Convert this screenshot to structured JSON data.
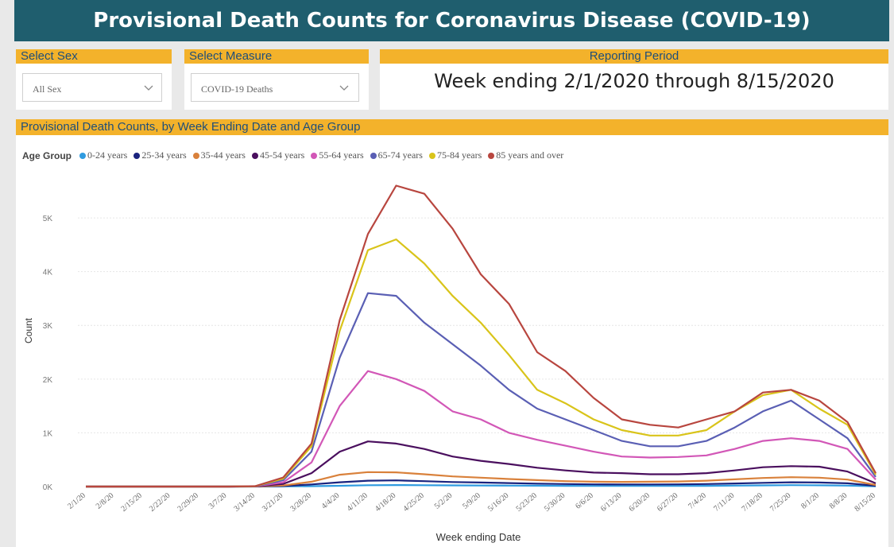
{
  "title": "Provisional Death Counts for Coronavirus Disease (COVID-19)",
  "filters": {
    "sex_label": "Select Sex",
    "sex_value": "All Sex",
    "measure_label": "Select Measure",
    "measure_value": "COVID-19 Deaths",
    "period_label": "Reporting Period",
    "period_value": "Week ending 2/1/2020 through 8/15/2020"
  },
  "colors": {
    "title_bar": "#1f5e6e",
    "header_band": "#f3b22b",
    "header_text": "#1f4e79"
  },
  "chart_data": {
    "type": "line",
    "title": "Provisional Death Counts, by Week Ending Date and Age Group",
    "xlabel": "Week ending Date",
    "ylabel": "Count",
    "legend_title": "Age Group",
    "legend_position": "top-left",
    "grid": true,
    "ylim": [
      0,
      5800
    ],
    "yticks": [
      {
        "value": 0,
        "label": "0K"
      },
      {
        "value": 1000,
        "label": "1K"
      },
      {
        "value": 2000,
        "label": "2K"
      },
      {
        "value": 3000,
        "label": "3K"
      },
      {
        "value": 4000,
        "label": "4K"
      },
      {
        "value": 5000,
        "label": "5K"
      }
    ],
    "x": [
      "2/1/20",
      "2/8/20",
      "2/15/20",
      "2/22/20",
      "2/29/20",
      "3/7/20",
      "3/14/20",
      "3/21/20",
      "3/28/20",
      "4/4/20",
      "4/11/20",
      "4/18/20",
      "4/25/20",
      "5/2/20",
      "5/9/20",
      "5/16/20",
      "5/23/20",
      "5/30/20",
      "6/6/20",
      "6/13/20",
      "6/20/20",
      "6/27/20",
      "7/4/20",
      "7/11/20",
      "7/18/20",
      "7/25/20",
      "8/1/20",
      "8/8/20",
      "8/15/20"
    ],
    "series": [
      {
        "name": "0-24 years",
        "color": "#2f9be0",
        "values": [
          0,
          0,
          0,
          0,
          0,
          0,
          0,
          3,
          8,
          15,
          25,
          28,
          25,
          22,
          20,
          18,
          16,
          14,
          12,
          12,
          12,
          12,
          14,
          18,
          22,
          26,
          24,
          18,
          5
        ]
      },
      {
        "name": "25-34 years",
        "color": "#1a237e",
        "values": [
          0,
          0,
          0,
          0,
          0,
          0,
          1,
          10,
          40,
          80,
          110,
          115,
          100,
          85,
          75,
          65,
          55,
          48,
          42,
          40,
          40,
          42,
          48,
          58,
          70,
          80,
          75,
          60,
          15
        ]
      },
      {
        "name": "35-44 years",
        "color": "#d9813b",
        "values": [
          0,
          0,
          0,
          0,
          0,
          0,
          2,
          20,
          90,
          220,
          270,
          265,
          230,
          190,
          165,
          140,
          120,
          100,
          90,
          88,
          90,
          95,
          110,
          135,
          160,
          175,
          165,
          130,
          30
        ]
      },
      {
        "name": "45-54 years",
        "color": "#4a0f5e",
        "values": [
          0,
          0,
          0,
          0,
          0,
          0,
          3,
          50,
          250,
          650,
          840,
          800,
          700,
          560,
          480,
          420,
          350,
          300,
          260,
          250,
          230,
          230,
          250,
          300,
          360,
          380,
          370,
          280,
          60
        ]
      },
      {
        "name": "55-64 years",
        "color": "#d257b7",
        "values": [
          0,
          0,
          0,
          0,
          0,
          0,
          4,
          80,
          450,
          1500,
          2150,
          2000,
          1780,
          1400,
          1250,
          1000,
          870,
          760,
          650,
          560,
          540,
          550,
          580,
          700,
          850,
          900,
          850,
          700,
          130
        ]
      },
      {
        "name": "65-74 years",
        "color": "#5a5fb4",
        "values": [
          0,
          0,
          0,
          0,
          0,
          0,
          5,
          120,
          650,
          2400,
          3600,
          3550,
          3050,
          2650,
          2250,
          1800,
          1450,
          1250,
          1050,
          850,
          750,
          750,
          850,
          1100,
          1400,
          1600,
          1250,
          900,
          180
        ]
      },
      {
        "name": "75-84 years",
        "color": "#d9c41a",
        "values": [
          0,
          0,
          0,
          0,
          0,
          0,
          6,
          150,
          750,
          2900,
          4400,
          4600,
          4150,
          3550,
          3050,
          2450,
          1800,
          1550,
          1250,
          1050,
          950,
          950,
          1050,
          1400,
          1700,
          1800,
          1450,
          1150,
          220
        ]
      },
      {
        "name": "85 years and over",
        "color": "#b8463f",
        "values": [
          0,
          0,
          0,
          0,
          0,
          0,
          8,
          170,
          800,
          3100,
          4700,
          5600,
          5450,
          4800,
          3950,
          3400,
          2500,
          2150,
          1650,
          1250,
          1150,
          1100,
          1250,
          1400,
          1750,
          1800,
          1600,
          1200,
          250
        ]
      }
    ]
  }
}
